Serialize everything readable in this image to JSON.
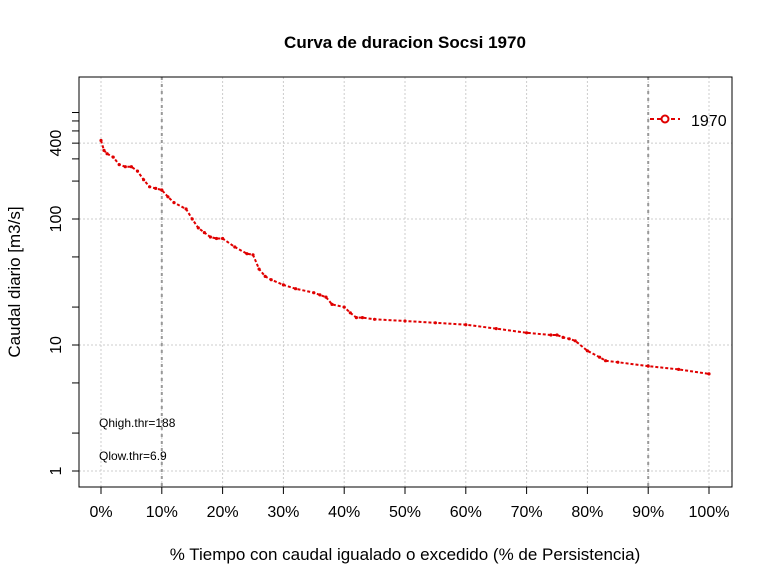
{
  "chart_data": {
    "type": "line",
    "title": "Curva de duracion Socsi 1970",
    "xlabel": "% Tiempo con caudal igualado o excedido (% de Persistencia)",
    "ylabel": "Caudal diario [m3/s]",
    "y_scale": "log",
    "xlim": [
      0,
      1
    ],
    "ylim": [
      0.75,
      800
    ],
    "x_ticks": [
      "0%",
      "10%",
      "20%",
      "30%",
      "40%",
      "50%",
      "60%",
      "70%",
      "80%",
      "90%",
      "100%"
    ],
    "y_tick_labels": [
      "1",
      "10",
      "100",
      "400"
    ],
    "grid": true,
    "legend": {
      "position": "top-right",
      "entries": [
        "1970"
      ]
    },
    "annotations": [
      "Qhigh.thr=188",
      "Qlow.thr=6.9"
    ],
    "colors": {
      "series": "#e00000",
      "grid": "#cccccc",
      "threshold_lines": "#999999"
    },
    "series": [
      {
        "name": "1970",
        "x": [
          0.0,
          0.005,
          0.01,
          0.02,
          0.03,
          0.04,
          0.05,
          0.06,
          0.07,
          0.08,
          0.09,
          0.1,
          0.11,
          0.12,
          0.14,
          0.15,
          0.16,
          0.17,
          0.18,
          0.19,
          0.2,
          0.22,
          0.24,
          0.25,
          0.26,
          0.27,
          0.28,
          0.3,
          0.32,
          0.35,
          0.36,
          0.37,
          0.38,
          0.4,
          0.41,
          0.42,
          0.43,
          0.45,
          0.5,
          0.55,
          0.6,
          0.65,
          0.7,
          0.74,
          0.75,
          0.76,
          0.77,
          0.78,
          0.8,
          0.82,
          0.83,
          0.85,
          0.9,
          0.95,
          1.0
        ],
        "y": [
          420,
          350,
          330,
          310,
          270,
          260,
          260,
          240,
          205,
          180,
          175,
          170,
          150,
          135,
          120,
          100,
          85,
          78,
          72,
          70,
          70,
          60,
          53,
          52,
          40,
          35,
          33,
          30,
          28,
          26,
          25,
          24,
          21,
          20,
          18,
          16.5,
          16.5,
          16,
          15.5,
          15,
          14.5,
          13.5,
          12.5,
          12,
          12,
          11.5,
          11.2,
          10.8,
          9,
          8,
          7.5,
          7.3,
          6.8,
          6.4,
          5.9
        ]
      }
    ]
  }
}
